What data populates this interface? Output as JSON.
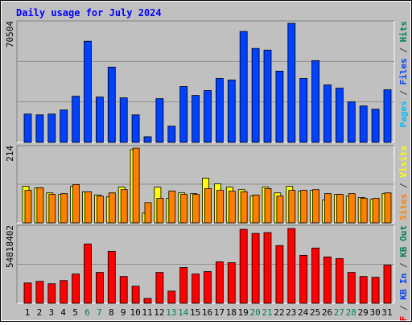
{
  "title": "Daily usage for July 2024",
  "legend_separator": " / ",
  "chart_data": [
    {
      "type": "bar",
      "ylim": [
        0,
        70504
      ],
      "yticks": [
        70504
      ],
      "legend": [
        {
          "name": "Pages",
          "color": "#00c0ff"
        },
        {
          "name": "Files",
          "color": "#0040ff"
        },
        {
          "name": "Hits",
          "color": "#00805c"
        }
      ],
      "series": [
        {
          "color": "#0040ff",
          "values": [
            16450,
            15980,
            16450,
            18800,
            26790,
            58750,
            26320,
            43710,
            25850,
            15980,
            3290,
            25380,
            9400,
            32430,
            27260,
            30080,
            37130,
            36190,
            64390,
            54520,
            53580,
            41360,
            69090,
            37130,
            47470,
            33370,
            31490,
            23500,
            21150,
            19270,
            30550
          ]
        }
      ]
    },
    {
      "type": "bar",
      "ylim": [
        0,
        214
      ],
      "yticks": [
        214
      ],
      "legend": [
        {
          "name": "Sites",
          "color": "#ff8000"
        },
        {
          "name": "Visits",
          "color": "#ffff00"
        }
      ],
      "series": [
        {
          "color": "#ffff00",
          "values": [
            101,
            97,
            83,
            79,
            101,
            86,
            77,
            72,
            99,
            203,
            27,
            99,
            68,
            83,
            81,
            124,
            108,
            99,
            92,
            74,
            99,
            83,
            101,
            88,
            90,
            63,
            79,
            74,
            70,
            65,
            81
          ]
        },
        {
          "color": "#ff8000",
          "values": [
            90,
            97,
            79,
            81,
            106,
            86,
            74,
            83,
            92,
            207,
            56,
            68,
            88,
            79,
            79,
            95,
            90,
            88,
            86,
            77,
            95,
            74,
            90,
            90,
            92,
            81,
            79,
            81,
            68,
            68,
            83
          ]
        }
      ]
    },
    {
      "type": "bar",
      "ylim": [
        0,
        54818402
      ],
      "yticks": [
        54818402
      ],
      "legend": [
        {
          "name": "KB F",
          "color": "#ff0000"
        },
        {
          "name": "KB In",
          "color": "#0040ff"
        },
        {
          "name": "KB Out",
          "color": "#00805c"
        }
      ],
      "series": [
        {
          "color": "#ff0000",
          "values": [
            14275000,
            15417000,
            13704000,
            15988000,
            20556000,
            41683000,
            21698000,
            36544000,
            18843000,
            11991000,
            3426000,
            21698000,
            8565000,
            25124000,
            20556000,
            22269000,
            29121000,
            28550000,
            51961000,
            49106000,
            49677000,
            40541000,
            52532000,
            33689000,
            38828000,
            32547000,
            31405000,
            21698000,
            18843000,
            18272000,
            26837000
          ]
        }
      ],
      "categories": [
        "1",
        "2",
        "3",
        "4",
        "5",
        "6",
        "7",
        "8",
        "9",
        "10",
        "11",
        "12",
        "13",
        "14",
        "15",
        "16",
        "17",
        "18",
        "19",
        "20",
        "21",
        "22",
        "23",
        "24",
        "25",
        "26",
        "27",
        "28",
        "29",
        "30",
        "31"
      ],
      "category_colors": [
        "#000",
        "#000",
        "#000",
        "#000",
        "#000",
        "#00805c",
        "#00805c",
        "#000",
        "#000",
        "#000",
        "#000",
        "#000",
        "#00805c",
        "#00805c",
        "#000",
        "#000",
        "#000",
        "#000",
        "#000",
        "#00805c",
        "#00805c",
        "#000",
        "#000",
        "#000",
        "#000",
        "#000",
        "#00805c",
        "#00805c",
        "#000",
        "#000",
        "#000"
      ]
    }
  ]
}
